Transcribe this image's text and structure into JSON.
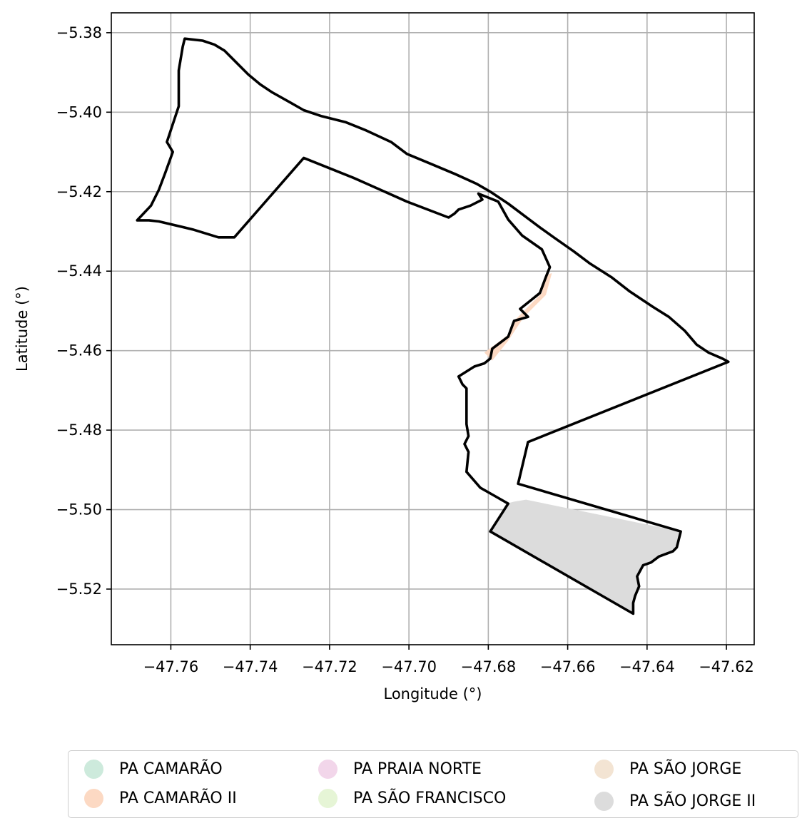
{
  "chart_data": {
    "type": "map",
    "title": "",
    "xlabel": "Longitude (°)",
    "ylabel": "Latitude (°)",
    "xlim": [
      -47.775,
      -47.613
    ],
    "ylim": [
      -5.534,
      -5.375
    ],
    "x_ticks": [
      -47.76,
      -47.74,
      -47.72,
      -47.7,
      -47.68,
      -47.66,
      -47.64,
      -47.62
    ],
    "y_ticks": [
      -5.38,
      -5.4,
      -5.42,
      -5.44,
      -5.46,
      -5.48,
      -5.5,
      -5.52
    ],
    "x_tick_labels": [
      "−47.76",
      "−47.74",
      "−47.72",
      "−47.70",
      "−47.68",
      "−47.66",
      "−47.64",
      "−47.62"
    ],
    "y_tick_labels": [
      "−5.38",
      "−5.40",
      "−5.42",
      "−5.44",
      "−5.46",
      "−5.48",
      "−5.50",
      "−5.52"
    ],
    "grid": true,
    "legend_position": "bottom-center",
    "series": [
      {
        "name": "PA CAMARÃO",
        "color": "#cdeadc",
        "polygon": []
      },
      {
        "name": "PA CAMARÃO II",
        "color": "#fcd9c3",
        "polygon": [
          [
            -47.681,
            -5.4605
          ],
          [
            -47.675,
            -5.456
          ],
          [
            -47.673,
            -5.452
          ],
          [
            -47.671,
            -5.45
          ],
          [
            -47.6665,
            -5.4455
          ],
          [
            -47.6655,
            -5.441
          ],
          [
            -47.664,
            -5.4405
          ],
          [
            -47.6655,
            -5.446
          ],
          [
            -47.671,
            -5.4515
          ],
          [
            -47.675,
            -5.4575
          ],
          [
            -47.679,
            -5.4625
          ]
        ]
      },
      {
        "name": "PA PRAIA NORTE",
        "color": "#f2d6ea",
        "polygon": []
      },
      {
        "name": "PA SÃO FRANCISCO",
        "color": "#e6f5d6",
        "polygon": []
      },
      {
        "name": "PA SÃO JORGE",
        "color": "#f3e4d3",
        "polygon": []
      },
      {
        "name": "PA SÃO JORGE II",
        "color": "#dcdcdc",
        "polygon": [
          [
            -47.6705,
            -5.4975
          ],
          [
            -47.6315,
            -5.5055
          ],
          [
            -47.6325,
            -5.5095
          ],
          [
            -47.6335,
            -5.5105
          ],
          [
            -47.637,
            -5.5118
          ],
          [
            -47.639,
            -5.5133
          ],
          [
            -47.641,
            -5.514
          ],
          [
            -47.6425,
            -5.5168
          ],
          [
            -47.642,
            -5.5193
          ],
          [
            -47.643,
            -5.5217
          ],
          [
            -47.6435,
            -5.5235
          ],
          [
            -47.6435,
            -5.5262
          ],
          [
            -47.6795,
            -5.5055
          ],
          [
            -47.6755,
            -5.4985
          ],
          [
            -47.6735,
            -5.498
          ]
        ]
      }
    ],
    "outline": [
      [
        -47.7565,
        -5.3815
      ],
      [
        -47.752,
        -5.382
      ],
      [
        -47.749,
        -5.383
      ],
      [
        -47.7465,
        -5.3845
      ],
      [
        -47.745,
        -5.386
      ],
      [
        -47.7405,
        -5.3905
      ],
      [
        -47.7375,
        -5.393
      ],
      [
        -47.7345,
        -5.395
      ],
      [
        -47.73,
        -5.3975
      ],
      [
        -47.7265,
        -5.3995
      ],
      [
        -47.722,
        -5.401
      ],
      [
        -47.716,
        -5.4025
      ],
      [
        -47.711,
        -5.4045
      ],
      [
        -47.7045,
        -5.4075
      ],
      [
        -47.7005,
        -5.4105
      ],
      [
        -47.6945,
        -5.413
      ],
      [
        -47.6885,
        -5.4155
      ],
      [
        -47.683,
        -5.418
      ],
      [
        -47.6795,
        -5.42
      ],
      [
        -47.675,
        -5.423
      ],
      [
        -47.671,
        -5.426
      ],
      [
        -47.667,
        -5.429
      ],
      [
        -47.6635,
        -5.4315
      ],
      [
        -47.6585,
        -5.435
      ],
      [
        -47.6545,
        -5.438
      ],
      [
        -47.649,
        -5.4415
      ],
      [
        -47.6445,
        -5.445
      ],
      [
        -47.6385,
        -5.449
      ],
      [
        -47.6345,
        -5.4515
      ],
      [
        -47.6305,
        -5.455
      ],
      [
        -47.6275,
        -5.4585
      ],
      [
        -47.6245,
        -5.4605
      ],
      [
        -47.621,
        -5.462
      ],
      [
        -47.6195,
        -5.4628
      ],
      [
        -47.67,
        -5.483
      ],
      [
        -47.6725,
        -5.4935
      ],
      [
        -47.6315,
        -5.5055
      ],
      [
        -47.6325,
        -5.5095
      ],
      [
        -47.6335,
        -5.5105
      ],
      [
        -47.637,
        -5.5118
      ],
      [
        -47.639,
        -5.5133
      ],
      [
        -47.641,
        -5.514
      ],
      [
        -47.6425,
        -5.5168
      ],
      [
        -47.642,
        -5.5193
      ],
      [
        -47.643,
        -5.5217
      ],
      [
        -47.6435,
        -5.5235
      ],
      [
        -47.6435,
        -5.5262
      ],
      [
        -47.6795,
        -5.5055
      ],
      [
        -47.675,
        -5.4985
      ],
      [
        -47.6785,
        -5.4965
      ],
      [
        -47.682,
        -5.4945
      ],
      [
        -47.6855,
        -5.4905
      ],
      [
        -47.685,
        -5.4855
      ],
      [
        -47.686,
        -5.4835
      ],
      [
        -47.685,
        -5.4815
      ],
      [
        -47.6855,
        -5.4785
      ],
      [
        -47.6855,
        -5.4725
      ],
      [
        -47.6855,
        -5.4695
      ],
      [
        -47.6865,
        -5.4685
      ],
      [
        -47.6875,
        -5.4665
      ],
      [
        -47.6835,
        -5.464
      ],
      [
        -47.681,
        -5.4632
      ],
      [
        -47.6795,
        -5.462
      ],
      [
        -47.679,
        -5.4595
      ],
      [
        -47.675,
        -5.4565
      ],
      [
        -47.6735,
        -5.4525
      ],
      [
        -47.67,
        -5.4515
      ],
      [
        -47.672,
        -5.4495
      ],
      [
        -47.6695,
        -5.4475
      ],
      [
        -47.667,
        -5.4455
      ],
      [
        -47.6655,
        -5.4415
      ],
      [
        -47.6645,
        -5.439
      ],
      [
        -47.6665,
        -5.4345
      ],
      [
        -47.6715,
        -5.431
      ],
      [
        -47.675,
        -5.427
      ],
      [
        -47.6775,
        -5.4225
      ],
      [
        -47.6825,
        -5.4205
      ],
      [
        -47.6815,
        -5.422
      ],
      [
        -47.6845,
        -5.4235
      ],
      [
        -47.6875,
        -5.4245
      ],
      [
        -47.6885,
        -5.4255
      ],
      [
        -47.69,
        -5.4265
      ],
      [
        -47.7005,
        -5.4225
      ],
      [
        -47.714,
        -5.4165
      ],
      [
        -47.7265,
        -5.4115
      ],
      [
        -47.744,
        -5.4315
      ],
      [
        -47.748,
        -5.4315
      ],
      [
        -47.7545,
        -5.4295
      ],
      [
        -47.763,
        -5.4275
      ],
      [
        -47.7655,
        -5.4272
      ],
      [
        -47.7685,
        -5.4272
      ],
      [
        -47.765,
        -5.4235
      ],
      [
        -47.763,
        -5.4195
      ],
      [
        -47.7615,
        -5.4155
      ],
      [
        -47.7595,
        -5.41
      ],
      [
        -47.761,
        -5.4075
      ],
      [
        -47.758,
        -5.3985
      ],
      [
        -47.758,
        -5.3895
      ],
      [
        -47.757,
        -5.3835
      ]
    ]
  }
}
